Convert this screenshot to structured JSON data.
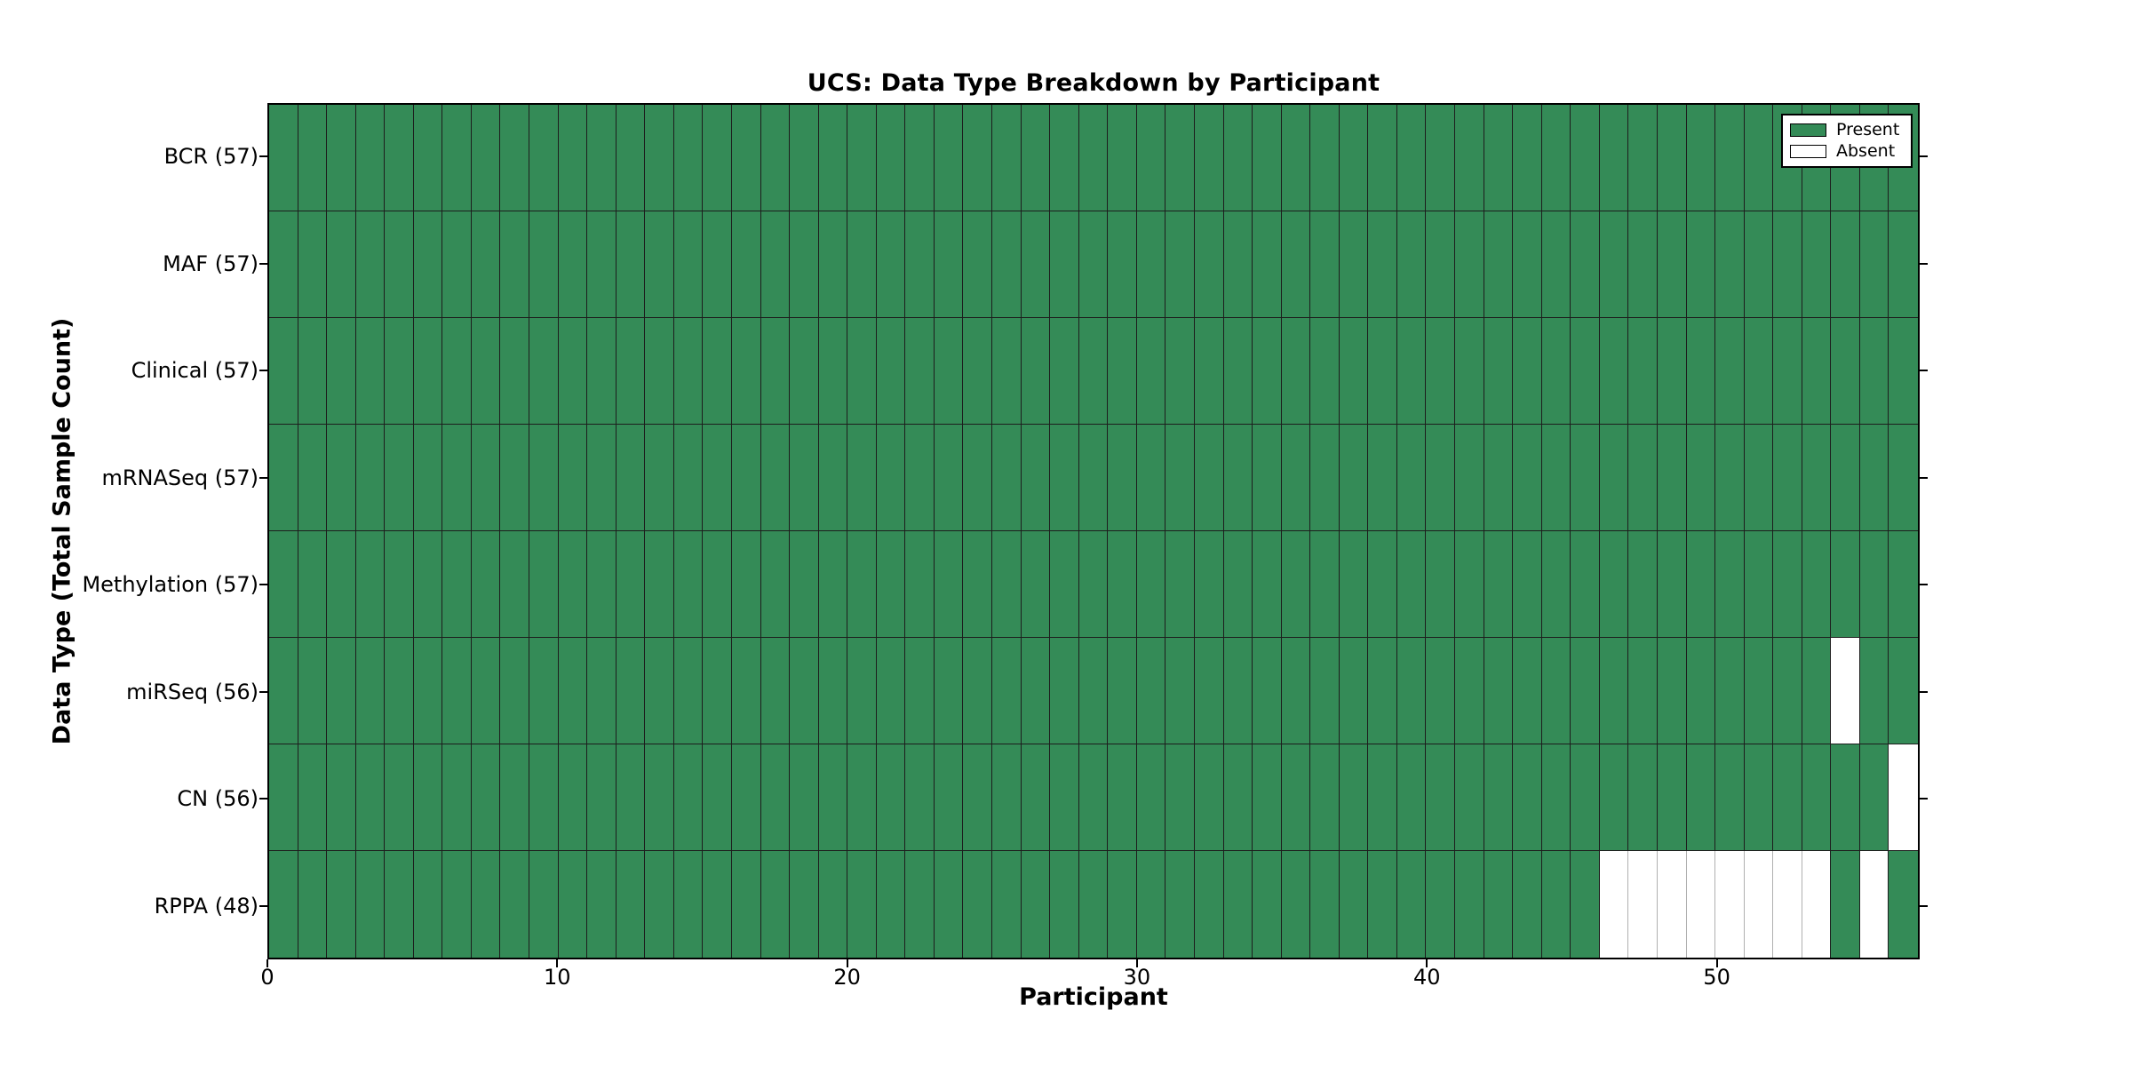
{
  "chart_data": {
    "type": "heatmap",
    "title": "UCS: Data Type Breakdown by Participant",
    "xlabel": "Participant",
    "ylabel": "Data Type (Total Sample Count)",
    "x_ticks": [
      0,
      10,
      20,
      30,
      40,
      50
    ],
    "x_range": [
      0,
      57
    ],
    "n_participants": 57,
    "grid_on": true,
    "legend_position": "upper right",
    "colors": {
      "present": "#348b57",
      "absent": "#ffffff",
      "edge_dark": "#1d1d1d",
      "edge_light": "#b0b0b0",
      "spine": "#000000"
    },
    "rows": [
      {
        "label": "BCR (57)",
        "total_samples": 57,
        "absent_cols": []
      },
      {
        "label": "MAF (57)",
        "total_samples": 57,
        "absent_cols": []
      },
      {
        "label": "Clinical (57)",
        "total_samples": 57,
        "absent_cols": []
      },
      {
        "label": "mRNASeq (57)",
        "total_samples": 57,
        "absent_cols": []
      },
      {
        "label": "Methylation (57)",
        "total_samples": 57,
        "absent_cols": []
      },
      {
        "label": "miRSeq (56)",
        "total_samples": 56,
        "absent_cols": [
          54
        ]
      },
      {
        "label": "CN (56)",
        "total_samples": 56,
        "absent_cols": [
          56
        ]
      },
      {
        "label": "RPPA (48)",
        "total_samples": 48,
        "absent_cols": [
          46,
          47,
          48,
          49,
          50,
          51,
          52,
          53,
          55
        ]
      }
    ],
    "legend": {
      "items": [
        {
          "label": "Present",
          "color": "#348b57"
        },
        {
          "label": "Absent",
          "color": "#ffffff"
        }
      ]
    }
  }
}
